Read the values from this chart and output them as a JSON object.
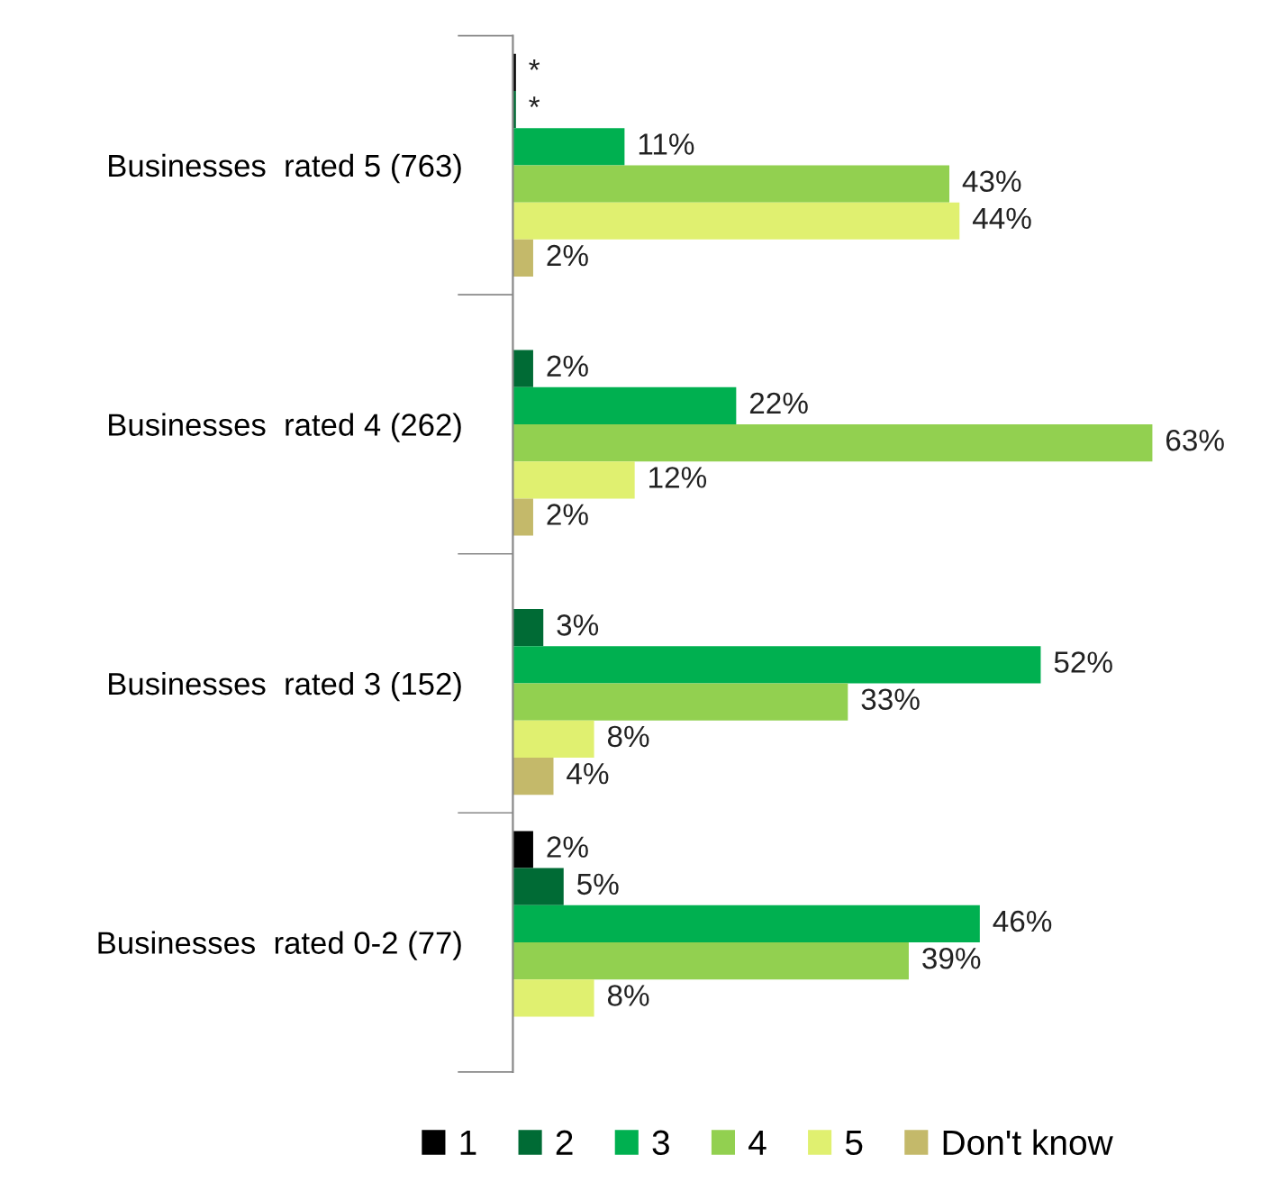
{
  "chart_data": {
    "type": "bar",
    "orientation": "horizontal",
    "categories": [
      "Businesses  rated 5 (763)",
      "Businesses  rated 4 (262)",
      "Businesses  rated 3 (152)",
      "Businesses  rated 0-2 (77)"
    ],
    "series": [
      {
        "name": "1",
        "color": "#000000",
        "values": [
          0.3,
          null,
          null,
          2
        ],
        "value_labels": [
          "*",
          null,
          null,
          "2%"
        ]
      },
      {
        "name": "2",
        "color": "#006b35",
        "values": [
          0.3,
          2,
          3,
          5
        ],
        "value_labels": [
          "*",
          "2%",
          "3%",
          "5%"
        ]
      },
      {
        "name": "3",
        "color": "#00b050",
        "values": [
          11,
          22,
          52,
          46
        ],
        "value_labels": [
          "11%",
          "22%",
          "52%",
          "46%"
        ]
      },
      {
        "name": "4",
        "color": "#92d050",
        "values": [
          43,
          63,
          33,
          39
        ],
        "value_labels": [
          "43%",
          "63%",
          "33%",
          "39%"
        ]
      },
      {
        "name": "5",
        "color": "#e0f070",
        "values": [
          44,
          12,
          8,
          8
        ],
        "value_labels": [
          "44%",
          "12%",
          "8%",
          "8%"
        ]
      },
      {
        "name": "Don't know",
        "color": "#c4b96a",
        "values": [
          2,
          2,
          4,
          null
        ],
        "value_labels": [
          "2%",
          "2%",
          "4%",
          null
        ]
      }
    ],
    "legend": "bottom",
    "grid": false
  }
}
